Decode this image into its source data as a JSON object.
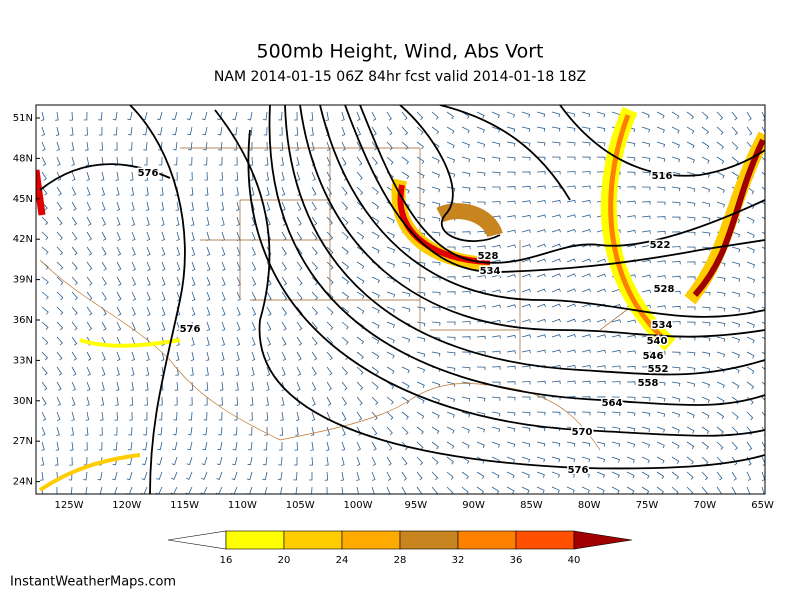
{
  "header": {
    "title": "500mb Height, Wind, Abs Vort",
    "subtitle": "NAM 2014-01-15 06Z 84hr fcst valid 2014-01-18 18Z"
  },
  "map": {
    "lat_labels": [
      "51N",
      "48N",
      "45N",
      "42N",
      "39N",
      "36N",
      "33N",
      "30N",
      "27N",
      "24N"
    ],
    "lon_labels": [
      "125W",
      "120W",
      "115W",
      "110W",
      "105W",
      "100W",
      "95W",
      "90W",
      "85W",
      "80W",
      "75W",
      "70W",
      "65W"
    ],
    "contour_labels": [
      576,
      576,
      528,
      534,
      516,
      522,
      528,
      534,
      540,
      546,
      552,
      558,
      564,
      570,
      576
    ]
  },
  "colorbar": {
    "ticks": [
      16,
      20,
      24,
      28,
      32,
      36,
      40
    ],
    "colors": [
      "#ffffff",
      "#ffff00",
      "#ffcc00",
      "#ffaa00",
      "#c8841e",
      "#ff8000",
      "#ff5000",
      "#e00000",
      "#a00000"
    ]
  },
  "footer": "InstantWeatherMaps.com"
}
